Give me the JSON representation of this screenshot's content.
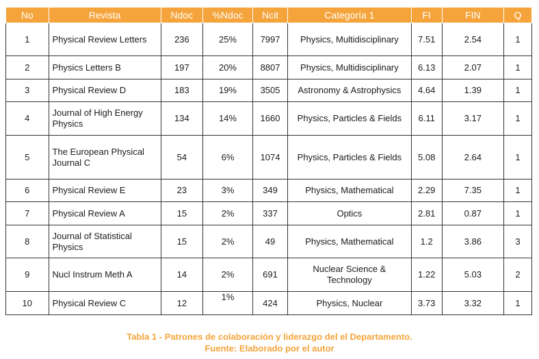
{
  "table": {
    "headers": [
      "No",
      "Revista",
      "Ndoc",
      "%Ndoc",
      "Ncit",
      "Categoría 1",
      "FI",
      "FIN",
      "Q"
    ],
    "rows": [
      {
        "no": "1",
        "revista": "Physical Review Letters",
        "ndoc": "236",
        "pndoc": "25%",
        "ncit": "7997",
        "categoria": "Physics, Multidisciplinary",
        "fi": "7.51",
        "fin": "2.54",
        "q": "1"
      },
      {
        "no": "2",
        "revista": "Physics Letters B",
        "ndoc": "197",
        "pndoc": "20%",
        "ncit": "8807",
        "categoria": "Physics, Multidisciplinary",
        "fi": "6.13",
        "fin": "2.07",
        "q": "1"
      },
      {
        "no": "3",
        "revista": "Physical Review D",
        "ndoc": "183",
        "pndoc": "19%",
        "ncit": "3505",
        "categoria": "Astronomy & Astrophysics",
        "fi": "4.64",
        "fin": "1.39",
        "q": "1"
      },
      {
        "no": "4",
        "revista": "Journal of High Energy Physics",
        "ndoc": "134",
        "pndoc": "14%",
        "ncit": "1660",
        "categoria": "Physics, Particles & Fields",
        "fi": "6.11",
        "fin": "3.17",
        "q": "1"
      },
      {
        "no": "5",
        "revista": "The European Physical Journal C",
        "ndoc": "54",
        "pndoc": "6%",
        "ncit": "1074",
        "categoria": "Physics, Particles & Fields",
        "fi": "5.08",
        "fin": "2.64",
        "q": "1"
      },
      {
        "no": "6",
        "revista": "Physical Review E",
        "ndoc": "23",
        "pndoc": "3%",
        "ncit": "349",
        "categoria": "Physics, Mathematical",
        "fi": "2.29",
        "fin": "7.35",
        "q": "1"
      },
      {
        "no": "7",
        "revista": "Physical Review A",
        "ndoc": "15",
        "pndoc": "2%",
        "ncit": "337",
        "categoria": "Optics",
        "fi": "2.81",
        "fin": "0.87",
        "q": "1"
      },
      {
        "no": "8",
        "revista": "Journal of Statistical Physics",
        "ndoc": "15",
        "pndoc": "2%",
        "ncit": "49",
        "categoria": "Physics, Mathematical",
        "fi": "1.2",
        "fin": "3.86",
        "q": "3"
      },
      {
        "no": "9",
        "revista": "Nucl Instrum Meth A",
        "ndoc": "14",
        "pndoc": "2%",
        "ncit": "691",
        "categoria": "Nuclear Science & Technology",
        "fi": "1.22",
        "fin": "5.03",
        "q": "2"
      },
      {
        "no": "10",
        "revista": "Physical Review C",
        "ndoc": "12",
        "pndoc": "1%",
        "ncit": "424",
        "categoria": "Physics, Nuclear",
        "fi": "3.73",
        "fin": "3.32",
        "q": "1"
      }
    ]
  },
  "caption": {
    "line1": "Tabla 1 - Patrones de colaboración y liderazgo del el Departamento.",
    "line2": "Fuente: Elaborado por el autor"
  },
  "colors": {
    "header_bg": "#f4a43b",
    "header_text": "#ffffff",
    "caption_text": "#f4a43b",
    "border": "#333333"
  }
}
